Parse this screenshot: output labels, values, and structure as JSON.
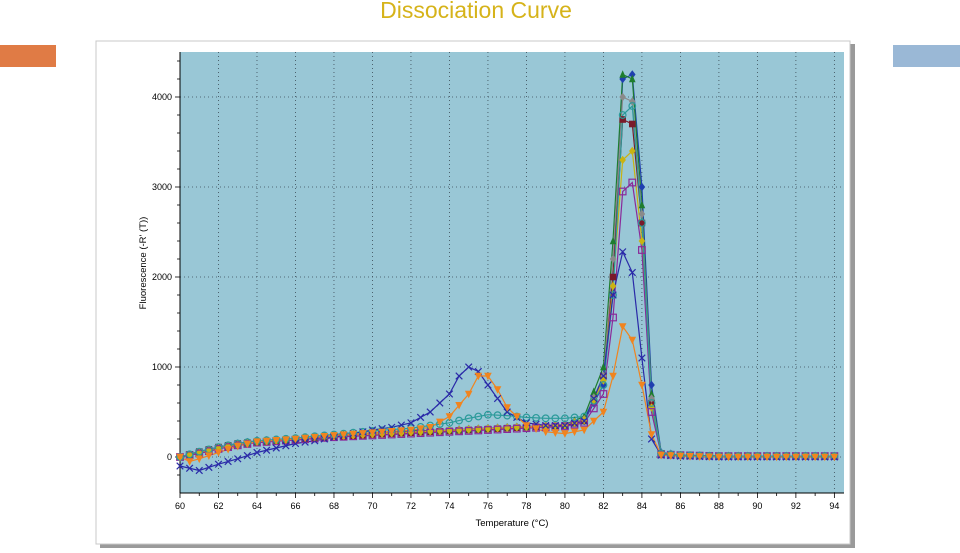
{
  "slide": {
    "title": "Dissociation Curve",
    "title_color": "#d6b31a",
    "accent_left_color": "#e07b45",
    "accent_right_color": "#9ab8d6"
  },
  "chart_data": {
    "type": "line",
    "title": "",
    "xlabel": "Temperature (°C)",
    "ylabel": "Fluorescence (-R' (T))",
    "xlim": [
      60,
      94.5
    ],
    "ylim": [
      -400,
      4500
    ],
    "x_ticks": [
      60,
      62,
      64,
      66,
      68,
      70,
      72,
      74,
      76,
      78,
      80,
      82,
      84,
      86,
      88,
      90,
      92,
      94
    ],
    "y_ticks": [
      0,
      1000,
      2000,
      3000,
      4000
    ],
    "grid": true,
    "plot_background": "#99c7d6",
    "legend": "none",
    "series": [
      {
        "color": "#1f3fb0",
        "marker": "diamond",
        "points": [
          [
            60,
            0
          ],
          [
            61,
            50
          ],
          [
            62,
            100
          ],
          [
            63,
            150
          ],
          [
            64,
            180
          ],
          [
            66,
            200
          ],
          [
            68,
            230
          ],
          [
            70,
            260
          ],
          [
            72,
            280
          ],
          [
            74,
            300
          ],
          [
            76,
            320
          ],
          [
            78,
            340
          ],
          [
            80,
            360
          ],
          [
            81,
            400
          ],
          [
            82,
            800
          ],
          [
            82.5,
            2000
          ],
          [
            83,
            4200
          ],
          [
            83.5,
            4250
          ],
          [
            84,
            3000
          ],
          [
            84.5,
            800
          ],
          [
            85,
            50
          ],
          [
            86,
            20
          ],
          [
            88,
            10
          ],
          [
            90,
            10
          ],
          [
            92,
            10
          ],
          [
            94,
            10
          ]
        ]
      },
      {
        "color": "#7a1a2a",
        "marker": "square",
        "points": [
          [
            60,
            0
          ],
          [
            61,
            60
          ],
          [
            62,
            110
          ],
          [
            63,
            150
          ],
          [
            64,
            170
          ],
          [
            66,
            190
          ],
          [
            68,
            220
          ],
          [
            70,
            250
          ],
          [
            72,
            270
          ],
          [
            74,
            290
          ],
          [
            76,
            310
          ],
          [
            78,
            330
          ],
          [
            80,
            350
          ],
          [
            81,
            400
          ],
          [
            82,
            900
          ],
          [
            82.5,
            2000
          ],
          [
            83,
            3750
          ],
          [
            83.5,
            3700
          ],
          [
            84,
            2600
          ],
          [
            84.5,
            600
          ],
          [
            85,
            40
          ],
          [
            86,
            20
          ],
          [
            88,
            10
          ],
          [
            90,
            10
          ],
          [
            92,
            10
          ],
          [
            94,
            10
          ]
        ]
      },
      {
        "color": "#1e7d2e",
        "marker": "triangle",
        "points": [
          [
            60,
            0
          ],
          [
            61,
            40
          ],
          [
            62,
            90
          ],
          [
            63,
            140
          ],
          [
            64,
            160
          ],
          [
            66,
            200
          ],
          [
            68,
            240
          ],
          [
            70,
            270
          ],
          [
            72,
            290
          ],
          [
            74,
            300
          ],
          [
            76,
            320
          ],
          [
            78,
            340
          ],
          [
            80,
            360
          ],
          [
            81,
            450
          ],
          [
            82,
            1000
          ],
          [
            82.5,
            2400
          ],
          [
            83,
            4250
          ],
          [
            83.5,
            4200
          ],
          [
            84,
            2800
          ],
          [
            84.5,
            700
          ],
          [
            85,
            40
          ],
          [
            86,
            20
          ],
          [
            88,
            10
          ],
          [
            90,
            10
          ],
          [
            92,
            10
          ],
          [
            94,
            10
          ]
        ]
      },
      {
        "color": "#8a8a8a",
        "marker": "diamond",
        "points": [
          [
            60,
            0
          ],
          [
            61,
            50
          ],
          [
            62,
            100
          ],
          [
            63,
            140
          ],
          [
            64,
            170
          ],
          [
            66,
            200
          ],
          [
            68,
            230
          ],
          [
            70,
            260
          ],
          [
            72,
            280
          ],
          [
            74,
            300
          ],
          [
            76,
            320
          ],
          [
            78,
            340
          ],
          [
            80,
            360
          ],
          [
            81,
            420
          ],
          [
            82,
            900
          ],
          [
            82.5,
            2200
          ],
          [
            83,
            4000
          ],
          [
            83.5,
            3950
          ],
          [
            84,
            2700
          ],
          [
            84.5,
            650
          ],
          [
            85,
            40
          ],
          [
            86,
            20
          ],
          [
            88,
            10
          ],
          [
            90,
            10
          ],
          [
            92,
            10
          ],
          [
            94,
            10
          ]
        ]
      },
      {
        "color": "#c9b312",
        "marker": "diamond",
        "points": [
          [
            60,
            0
          ],
          [
            61,
            45
          ],
          [
            62,
            95
          ],
          [
            63,
            140
          ],
          [
            64,
            165
          ],
          [
            66,
            195
          ],
          [
            68,
            225
          ],
          [
            70,
            255
          ],
          [
            72,
            275
          ],
          [
            74,
            295
          ],
          [
            76,
            315
          ],
          [
            78,
            335
          ],
          [
            80,
            355
          ],
          [
            81,
            410
          ],
          [
            82,
            850
          ],
          [
            82.5,
            1900
          ],
          [
            83,
            3300
          ],
          [
            83.5,
            3400
          ],
          [
            84,
            2400
          ],
          [
            84.5,
            550
          ],
          [
            85,
            40
          ],
          [
            86,
            20
          ],
          [
            88,
            10
          ],
          [
            90,
            10
          ],
          [
            92,
            10
          ],
          [
            94,
            10
          ]
        ]
      },
      {
        "color": "#8a2a9a",
        "marker": "square-open",
        "points": [
          [
            60,
            0
          ],
          [
            61,
            40
          ],
          [
            62,
            90
          ],
          [
            63,
            130
          ],
          [
            64,
            160
          ],
          [
            66,
            190
          ],
          [
            68,
            220
          ],
          [
            70,
            240
          ],
          [
            72,
            260
          ],
          [
            74,
            280
          ],
          [
            76,
            300
          ],
          [
            78,
            320
          ],
          [
            80,
            340
          ],
          [
            81,
            380
          ],
          [
            82,
            700
          ],
          [
            82.5,
            1550
          ],
          [
            83,
            2950
          ],
          [
            83.5,
            3050
          ],
          [
            84,
            2300
          ],
          [
            84.5,
            500
          ],
          [
            85,
            30
          ],
          [
            86,
            20
          ],
          [
            88,
            10
          ],
          [
            90,
            10
          ],
          [
            92,
            10
          ],
          [
            94,
            10
          ]
        ]
      },
      {
        "color": "#2b9a9a",
        "marker": "circle-open",
        "points": [
          [
            60,
            0
          ],
          [
            61,
            60
          ],
          [
            62,
            110
          ],
          [
            63,
            150
          ],
          [
            64,
            180
          ],
          [
            66,
            210
          ],
          [
            68,
            250
          ],
          [
            70,
            290
          ],
          [
            72,
            320
          ],
          [
            74,
            380
          ],
          [
            75,
            430
          ],
          [
            76,
            470
          ],
          [
            77,
            460
          ],
          [
            78,
            440
          ],
          [
            79,
            430
          ],
          [
            80,
            430
          ],
          [
            81,
            450
          ],
          [
            82,
            800
          ],
          [
            82.5,
            1800
          ],
          [
            83,
            3800
          ],
          [
            83.5,
            3900
          ],
          [
            84,
            2600
          ],
          [
            84.5,
            600
          ],
          [
            85,
            40
          ],
          [
            86,
            20
          ],
          [
            88,
            10
          ],
          [
            90,
            10
          ],
          [
            92,
            10
          ],
          [
            94,
            10
          ]
        ]
      },
      {
        "color": "#2a2aa8",
        "marker": "x",
        "points": [
          [
            60,
            -100
          ],
          [
            61,
            -150
          ],
          [
            62,
            -80
          ],
          [
            63,
            -20
          ],
          [
            64,
            50
          ],
          [
            65,
            100
          ],
          [
            66,
            150
          ],
          [
            67,
            180
          ],
          [
            68,
            220
          ],
          [
            69,
            260
          ],
          [
            70,
            300
          ],
          [
            71,
            330
          ],
          [
            72,
            380
          ],
          [
            73,
            500
          ],
          [
            74,
            700
          ],
          [
            74.5,
            900
          ],
          [
            75,
            1000
          ],
          [
            75.5,
            950
          ],
          [
            76,
            800
          ],
          [
            77,
            500
          ],
          [
            78,
            380
          ],
          [
            79,
            350
          ],
          [
            80,
            350
          ],
          [
            81,
            400
          ],
          [
            82,
            900
          ],
          [
            82.5,
            1800
          ],
          [
            83,
            2280
          ],
          [
            83.5,
            2050
          ],
          [
            84,
            1100
          ],
          [
            84.5,
            200
          ],
          [
            85,
            20
          ],
          [
            86,
            10
          ],
          [
            88,
            0
          ],
          [
            90,
            0
          ],
          [
            92,
            0
          ],
          [
            94,
            0
          ]
        ]
      },
      {
        "color": "#f0841f",
        "marker": "triangle-down",
        "points": [
          [
            60,
            0
          ],
          [
            60.5,
            -50
          ],
          [
            61,
            -20
          ],
          [
            62,
            50
          ],
          [
            63,
            120
          ],
          [
            64,
            170
          ],
          [
            66,
            200
          ],
          [
            68,
            240
          ],
          [
            70,
            270
          ],
          [
            72,
            300
          ],
          [
            73,
            330
          ],
          [
            74,
            450
          ],
          [
            75,
            700
          ],
          [
            75.5,
            900
          ],
          [
            76,
            900
          ],
          [
            76.5,
            750
          ],
          [
            77,
            550
          ],
          [
            78,
            350
          ],
          [
            79,
            280
          ],
          [
            80,
            260
          ],
          [
            81,
            300
          ],
          [
            82,
            500
          ],
          [
            82.5,
            900
          ],
          [
            83,
            1450
          ],
          [
            83.5,
            1300
          ],
          [
            84,
            800
          ],
          [
            84.5,
            250
          ],
          [
            85,
            20
          ],
          [
            86,
            10
          ],
          [
            88,
            0
          ],
          [
            90,
            0
          ],
          [
            92,
            0
          ],
          [
            94,
            0
          ]
        ]
      }
    ]
  }
}
